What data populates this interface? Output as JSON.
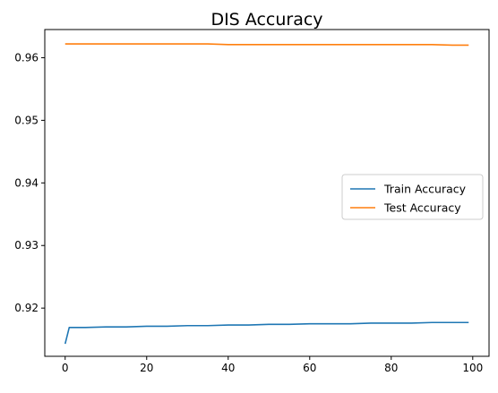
{
  "chart_data": {
    "type": "line",
    "title": "DIS Accuracy",
    "xlabel": "",
    "ylabel": "",
    "xlim": [
      -5,
      104
    ],
    "ylim": [
      0.9123,
      0.9645
    ],
    "xticks": [
      0,
      20,
      40,
      60,
      80,
      100
    ],
    "yticks": [
      0.92,
      0.93,
      0.94,
      0.95,
      0.96
    ],
    "xtick_labels": [
      "0",
      "20",
      "40",
      "60",
      "80",
      "100"
    ],
    "ytick_labels": [
      "0.92",
      "0.93",
      "0.94",
      "0.95",
      "0.96"
    ],
    "grid": false,
    "legend_position": "center-right",
    "series": [
      {
        "name": "Train Accuracy",
        "color": "#1f77b4",
        "x": [
          0,
          1,
          5,
          10,
          15,
          20,
          25,
          30,
          35,
          40,
          45,
          50,
          55,
          60,
          65,
          70,
          75,
          80,
          85,
          90,
          95,
          99
        ],
        "values": [
          0.9143,
          0.9169,
          0.9169,
          0.917,
          0.917,
          0.9171,
          0.9171,
          0.9172,
          0.9172,
          0.9173,
          0.9173,
          0.9174,
          0.9174,
          0.9175,
          0.9175,
          0.9175,
          0.9176,
          0.9176,
          0.9176,
          0.9177,
          0.9177,
          0.9177
        ]
      },
      {
        "name": "Test Accuracy",
        "color": "#ff7f0e",
        "x": [
          0,
          5,
          10,
          15,
          20,
          25,
          30,
          35,
          40,
          45,
          50,
          55,
          60,
          65,
          70,
          75,
          80,
          85,
          90,
          95,
          99
        ],
        "values": [
          0.9622,
          0.9622,
          0.9622,
          0.9622,
          0.9622,
          0.9622,
          0.9622,
          0.9622,
          0.9621,
          0.9621,
          0.9621,
          0.9621,
          0.9621,
          0.9621,
          0.9621,
          0.9621,
          0.9621,
          0.9621,
          0.9621,
          0.962,
          0.962
        ]
      }
    ]
  }
}
